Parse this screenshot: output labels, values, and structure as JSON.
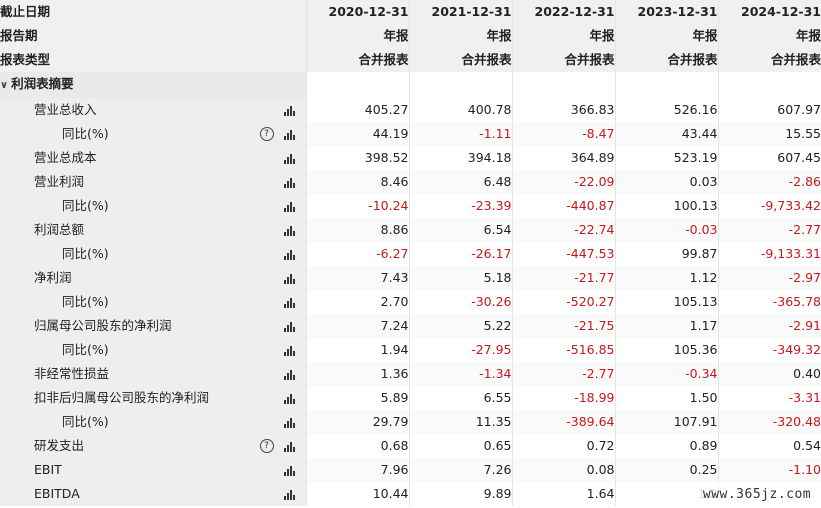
{
  "header": {
    "date_label": "截止日期",
    "period_label": "报告期",
    "type_label": "报表类型",
    "years": [
      "2020-12-31",
      "2021-12-31",
      "2022-12-31",
      "2023-12-31",
      "2024-12-31"
    ],
    "period": [
      "年报",
      "年报",
      "年报",
      "年报",
      "年报"
    ],
    "type": [
      "合并报表",
      "合并报表",
      "合并报表",
      "合并报表",
      "合并报表"
    ]
  },
  "section": {
    "title": "利润表摘要",
    "expanded_icon": "chevron-down-icon"
  },
  "rows": [
    {
      "label": "营业总收入",
      "sub": false,
      "help": false,
      "values": [
        "405.27",
        "400.78",
        "366.83",
        "526.16",
        "607.97"
      ]
    },
    {
      "label": "同比(%)",
      "sub": true,
      "help": true,
      "values": [
        "44.19",
        "-1.11",
        "-8.47",
        "43.44",
        "15.55"
      ]
    },
    {
      "label": "营业总成本",
      "sub": false,
      "help": false,
      "values": [
        "398.52",
        "394.18",
        "364.89",
        "523.19",
        "607.45"
      ]
    },
    {
      "label": "营业利润",
      "sub": false,
      "help": false,
      "values": [
        "8.46",
        "6.48",
        "-22.09",
        "0.03",
        "-2.86"
      ]
    },
    {
      "label": "同比(%)",
      "sub": true,
      "help": false,
      "values": [
        "-10.24",
        "-23.39",
        "-440.87",
        "100.13",
        "-9,733.42"
      ]
    },
    {
      "label": "利润总额",
      "sub": false,
      "help": false,
      "values": [
        "8.86",
        "6.54",
        "-22.74",
        "-0.03",
        "-2.77"
      ]
    },
    {
      "label": "同比(%)",
      "sub": true,
      "help": false,
      "values": [
        "-6.27",
        "-26.17",
        "-447.53",
        "99.87",
        "-9,133.31"
      ]
    },
    {
      "label": "净利润",
      "sub": false,
      "help": false,
      "values": [
        "7.43",
        "5.18",
        "-21.77",
        "1.12",
        "-2.97"
      ]
    },
    {
      "label": "同比(%)",
      "sub": true,
      "help": false,
      "values": [
        "2.70",
        "-30.26",
        "-520.27",
        "105.13",
        "-365.78"
      ]
    },
    {
      "label": "归属母公司股东的净利润",
      "sub": false,
      "help": false,
      "values": [
        "7.24",
        "5.22",
        "-21.75",
        "1.17",
        "-2.91"
      ]
    },
    {
      "label": "同比(%)",
      "sub": true,
      "help": false,
      "values": [
        "1.94",
        "-27.95",
        "-516.85",
        "105.36",
        "-349.32"
      ]
    },
    {
      "label": "非经常性损益",
      "sub": false,
      "help": false,
      "values": [
        "1.36",
        "-1.34",
        "-2.77",
        "-0.34",
        "0.40"
      ]
    },
    {
      "label": "扣非后归属母公司股东的净利润",
      "sub": false,
      "help": false,
      "values": [
        "5.89",
        "6.55",
        "-18.99",
        "1.50",
        "-3.31"
      ]
    },
    {
      "label": "同比(%)",
      "sub": true,
      "help": false,
      "values": [
        "29.79",
        "11.35",
        "-389.64",
        "107.91",
        "-320.48"
      ]
    },
    {
      "label": "研发支出",
      "sub": false,
      "help": true,
      "values": [
        "0.68",
        "0.65",
        "0.72",
        "0.89",
        "0.54"
      ]
    },
    {
      "label": "EBIT",
      "sub": false,
      "help": false,
      "values": [
        "7.96",
        "7.26",
        "0.08",
        "0.25",
        "-1.10"
      ]
    },
    {
      "label": "EBITDA",
      "sub": false,
      "help": false,
      "values": [
        "10.44",
        "9.89",
        "1.64",
        "1.2",
        ""
      ]
    }
  ],
  "icons": {
    "chart": "bar-chart-icon",
    "help": "help-circle-icon",
    "help_glyph": "?"
  },
  "watermark": "www.365jz.com",
  "colors": {
    "negative": "#c41a1a",
    "header_bg": "#f0f0f0",
    "label_bg": "#eeeeee"
  }
}
